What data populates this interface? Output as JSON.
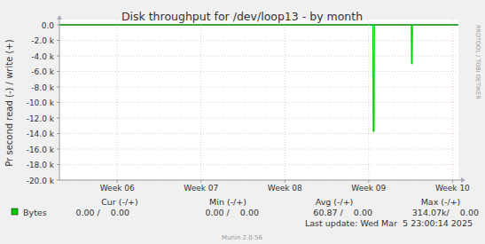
{
  "chart_data": {
    "type": "line",
    "title": "Disk throughput for /dev/loop13 - by month",
    "y_label": "Pr second read (-) / write (+)",
    "side_text": "RRDTOOL / TOBI OETIKER",
    "xlim": [
      5.31,
      10.07
    ],
    "xticks": [
      {
        "value": 6,
        "label": "Week 06"
      },
      {
        "value": 7,
        "label": "Week 07"
      },
      {
        "value": 8,
        "label": "Week 08"
      },
      {
        "value": 9,
        "label": "Week 09"
      },
      {
        "value": 10,
        "label": "Week 10"
      }
    ],
    "ylim": [
      -20000,
      0
    ],
    "yticks": [
      {
        "value": 0,
        "label": "0.0"
      },
      {
        "value": -2000,
        "label": "-2.0 k"
      },
      {
        "value": -4000,
        "label": "-4.0 k"
      },
      {
        "value": -6000,
        "label": "-6.0 k"
      },
      {
        "value": -8000,
        "label": "-8.0 k"
      },
      {
        "value": -10000,
        "label": "-10.0 k"
      },
      {
        "value": -12000,
        "label": "-12.0 k"
      },
      {
        "value": -14000,
        "label": "-14.0 k"
      },
      {
        "value": -16000,
        "label": "-16.0 k"
      },
      {
        "value": -18000,
        "label": "-18.0 k"
      },
      {
        "value": -20000,
        "label": "-20.0 k"
      }
    ],
    "grid": true,
    "x": [
      5.31,
      9.05,
      9.054,
      9.064,
      9.068,
      9.508,
      9.512,
      9.518,
      9.522,
      10.07
    ],
    "series": [
      {
        "name": "Bytes",
        "color": "#00cc00",
        "values": [
          0,
          0,
          -13700,
          -13700,
          0,
          0,
          -5000,
          -5000,
          0,
          0
        ]
      }
    ],
    "legend_table": {
      "headers": [
        "Cur (-/+)",
        "Min (-/+)",
        "Avg (-/+)",
        "Max (-/+)"
      ],
      "rows": [
        [
          "0.00 /    0.00",
          "0.00 /    0.00",
          "60.87 /    0.00",
          "314.07k/    0.00"
        ]
      ]
    },
    "last_update": "Last update: Wed Mar  5 23:00:14 2025",
    "footer": "Munin 2.0.56"
  }
}
